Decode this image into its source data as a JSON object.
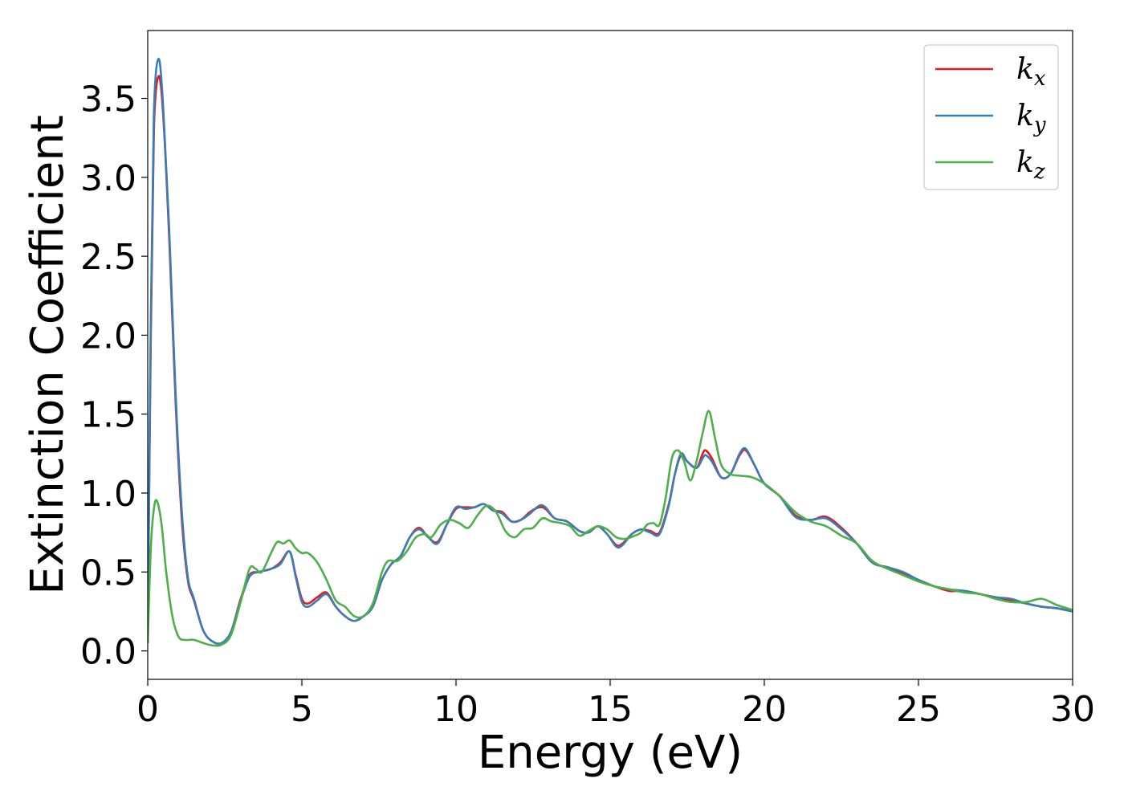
{
  "chart_data": {
    "type": "line",
    "xlabel": "Energy (eV)",
    "ylabel": "Extinction Coefficient",
    "xlim": [
      0,
      30
    ],
    "ylim": [
      -0.18,
      3.93
    ],
    "xticks": [
      0,
      5,
      10,
      15,
      20,
      25,
      30
    ],
    "xtick_labels": [
      "0",
      "5",
      "10",
      "15",
      "20",
      "25",
      "30"
    ],
    "yticks": [
      0.0,
      0.5,
      1.0,
      1.5,
      2.0,
      2.5,
      3.0,
      3.5
    ],
    "ytick_labels": [
      "0.0",
      "0.5",
      "1.0",
      "1.5",
      "2.0",
      "2.5",
      "3.0",
      "3.5"
    ],
    "grid": false,
    "legend_position": "top-right",
    "series": [
      {
        "name": "k",
        "subscript": "x",
        "color": "#e41a1c",
        "x": [
          0,
          0.1,
          0.2,
          0.35,
          0.5,
          0.7,
          0.9,
          1.1,
          1.3,
          1.5,
          1.8,
          2.1,
          2.4,
          2.7,
          3.0,
          3.3,
          3.6,
          4.0,
          4.3,
          4.6,
          4.8,
          5.0,
          5.2,
          5.5,
          5.8,
          6.1,
          6.4,
          6.7,
          7.0,
          7.3,
          7.6,
          7.9,
          8.2,
          8.5,
          8.8,
          9.1,
          9.4,
          9.7,
          10.0,
          10.3,
          10.6,
          10.9,
          11.2,
          11.5,
          11.8,
          12.1,
          12.4,
          12.7,
          12.9,
          13.2,
          13.6,
          14.0,
          14.3,
          14.6,
          14.9,
          15.2,
          15.4,
          15.7,
          16.0,
          16.3,
          16.6,
          16.9,
          17.1,
          17.3,
          17.5,
          17.8,
          18.0,
          18.1,
          18.3,
          18.6,
          18.9,
          19.2,
          19.4,
          19.7,
          20.0,
          20.5,
          21.0,
          21.5,
          22.0,
          22.5,
          23.0,
          23.5,
          24.0,
          24.5,
          25.0,
          25.5,
          26.0,
          26.5,
          27.0,
          27.5,
          28.0,
          28.5,
          29.0,
          29.5,
          30.0
        ],
        "values": [
          0.05,
          2.0,
          3.3,
          3.64,
          3.4,
          2.6,
          1.6,
          0.85,
          0.45,
          0.32,
          0.13,
          0.06,
          0.05,
          0.12,
          0.32,
          0.48,
          0.5,
          0.52,
          0.56,
          0.63,
          0.48,
          0.33,
          0.3,
          0.34,
          0.37,
          0.28,
          0.22,
          0.19,
          0.22,
          0.28,
          0.45,
          0.55,
          0.6,
          0.72,
          0.78,
          0.72,
          0.69,
          0.8,
          0.9,
          0.91,
          0.91,
          0.93,
          0.89,
          0.88,
          0.82,
          0.83,
          0.88,
          0.91,
          0.9,
          0.84,
          0.82,
          0.76,
          0.75,
          0.79,
          0.74,
          0.67,
          0.68,
          0.74,
          0.77,
          0.76,
          0.75,
          0.93,
          1.12,
          1.24,
          1.2,
          1.16,
          1.25,
          1.27,
          1.22,
          1.1,
          1.12,
          1.24,
          1.27,
          1.17,
          1.06,
          0.98,
          0.86,
          0.83,
          0.85,
          0.78,
          0.68,
          0.56,
          0.53,
          0.49,
          0.45,
          0.41,
          0.38,
          0.38,
          0.36,
          0.34,
          0.32,
          0.3,
          0.28,
          0.27,
          0.25
        ]
      },
      {
        "name": "k",
        "subscript": "y",
        "color": "#377eb8",
        "x": [
          0,
          0.1,
          0.2,
          0.35,
          0.5,
          0.7,
          0.9,
          1.1,
          1.3,
          1.5,
          1.8,
          2.1,
          2.4,
          2.7,
          3.0,
          3.3,
          3.6,
          4.0,
          4.3,
          4.6,
          4.8,
          5.0,
          5.2,
          5.5,
          5.8,
          6.1,
          6.4,
          6.7,
          7.0,
          7.3,
          7.6,
          7.9,
          8.2,
          8.5,
          8.8,
          9.1,
          9.4,
          9.7,
          10.0,
          10.3,
          10.6,
          10.9,
          11.2,
          11.5,
          11.8,
          12.1,
          12.4,
          12.7,
          12.9,
          13.2,
          13.6,
          14.0,
          14.3,
          14.6,
          14.9,
          15.2,
          15.4,
          15.7,
          16.0,
          16.3,
          16.6,
          16.9,
          17.1,
          17.3,
          17.5,
          17.8,
          18.0,
          18.1,
          18.3,
          18.6,
          18.9,
          19.2,
          19.4,
          19.7,
          20.0,
          20.5,
          21.0,
          21.5,
          22.0,
          22.5,
          23.0,
          23.5,
          24.0,
          24.5,
          25.0,
          25.5,
          26.0,
          26.5,
          27.0,
          27.5,
          28.0,
          28.5,
          29.0,
          29.5,
          30.0
        ],
        "values": [
          0.05,
          2.1,
          3.4,
          3.75,
          3.45,
          2.65,
          1.65,
          0.9,
          0.47,
          0.33,
          0.13,
          0.06,
          0.05,
          0.12,
          0.31,
          0.47,
          0.5,
          0.52,
          0.55,
          0.63,
          0.47,
          0.31,
          0.28,
          0.32,
          0.36,
          0.28,
          0.22,
          0.19,
          0.22,
          0.28,
          0.45,
          0.55,
          0.6,
          0.72,
          0.77,
          0.72,
          0.68,
          0.8,
          0.91,
          0.9,
          0.91,
          0.93,
          0.89,
          0.87,
          0.82,
          0.83,
          0.87,
          0.92,
          0.91,
          0.84,
          0.82,
          0.76,
          0.75,
          0.79,
          0.74,
          0.66,
          0.67,
          0.74,
          0.77,
          0.75,
          0.74,
          0.92,
          1.12,
          1.25,
          1.2,
          1.16,
          1.22,
          1.24,
          1.2,
          1.1,
          1.12,
          1.25,
          1.28,
          1.17,
          1.06,
          0.98,
          0.85,
          0.83,
          0.84,
          0.77,
          0.68,
          0.56,
          0.53,
          0.5,
          0.45,
          0.41,
          0.39,
          0.38,
          0.36,
          0.34,
          0.33,
          0.3,
          0.28,
          0.27,
          0.25
        ]
      },
      {
        "name": "k",
        "subscript": "z",
        "color": "#4daf4a",
        "x": [
          0,
          0.1,
          0.2,
          0.3,
          0.45,
          0.6,
          0.8,
          1.0,
          1.2,
          1.5,
          1.8,
          2.1,
          2.4,
          2.7,
          3.0,
          3.3,
          3.5,
          3.7,
          4.0,
          4.2,
          4.4,
          4.6,
          4.8,
          5.0,
          5.2,
          5.5,
          5.8,
          6.1,
          6.4,
          6.7,
          7.0,
          7.3,
          7.6,
          7.8,
          8.1,
          8.4,
          8.7,
          9.0,
          9.2,
          9.5,
          9.8,
          10.1,
          10.4,
          10.7,
          11.0,
          11.3,
          11.6,
          11.9,
          12.2,
          12.5,
          12.8,
          13.1,
          13.4,
          13.7,
          14.0,
          14.3,
          14.6,
          14.9,
          15.2,
          15.5,
          15.8,
          16.0,
          16.2,
          16.4,
          16.6,
          16.8,
          17.0,
          17.2,
          17.4,
          17.6,
          17.8,
          18.0,
          18.2,
          18.4,
          18.6,
          18.9,
          19.2,
          19.6,
          20.0,
          20.5,
          21.0,
          21.5,
          22.0,
          22.5,
          23.0,
          23.5,
          24.0,
          24.5,
          25.0,
          25.5,
          26.0,
          26.5,
          27.0,
          27.5,
          28.0,
          28.5,
          29.0,
          29.5,
          30.0
        ],
        "values": [
          0.05,
          0.65,
          0.9,
          0.95,
          0.8,
          0.5,
          0.22,
          0.09,
          0.07,
          0.07,
          0.05,
          0.035,
          0.04,
          0.1,
          0.3,
          0.52,
          0.52,
          0.5,
          0.62,
          0.69,
          0.68,
          0.7,
          0.65,
          0.62,
          0.62,
          0.56,
          0.45,
          0.32,
          0.28,
          0.22,
          0.22,
          0.3,
          0.5,
          0.57,
          0.57,
          0.63,
          0.72,
          0.74,
          0.72,
          0.8,
          0.83,
          0.81,
          0.78,
          0.86,
          0.92,
          0.88,
          0.76,
          0.72,
          0.77,
          0.78,
          0.84,
          0.82,
          0.81,
          0.79,
          0.73,
          0.76,
          0.79,
          0.77,
          0.72,
          0.71,
          0.73,
          0.75,
          0.8,
          0.81,
          0.8,
          0.97,
          1.22,
          1.27,
          1.2,
          1.08,
          1.2,
          1.38,
          1.52,
          1.35,
          1.18,
          1.12,
          1.11,
          1.1,
          1.06,
          0.98,
          0.88,
          0.82,
          0.79,
          0.73,
          0.68,
          0.57,
          0.52,
          0.48,
          0.44,
          0.41,
          0.39,
          0.37,
          0.36,
          0.33,
          0.31,
          0.31,
          0.33,
          0.29,
          0.26
        ]
      }
    ]
  }
}
